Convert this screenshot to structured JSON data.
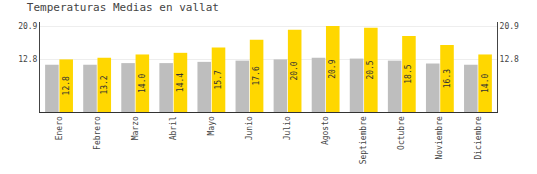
{
  "chart_data": {
    "type": "bar",
    "title": "Temperaturas Medias en vallat",
    "categories": [
      "Enero",
      "Febrero",
      "Marzo",
      "Abril",
      "Mayo",
      "Junio",
      "Julio",
      "Agosto",
      "Septiembre",
      "Octubre",
      "Noviembre",
      "Diciembre"
    ],
    "series": [
      {
        "color": "#BEBEBE",
        "values": [
          11.5,
          11.5,
          11.9,
          11.9,
          12.2,
          12.5,
          12.8,
          13.2,
          13.0,
          12.5,
          11.8,
          11.5
        ]
      },
      {
        "color": "#FFD700",
        "values": [
          12.8,
          13.2,
          14.0,
          14.4,
          15.7,
          17.6,
          20.0,
          20.9,
          20.5,
          18.5,
          16.3,
          14.0
        ],
        "data_labels": true,
        "value_labels": [
          "12.8",
          "13.2",
          "14.0",
          "14.4",
          "15.7",
          "17.6",
          "20.0",
          "20.9",
          "20.5",
          "18.5",
          "16.3",
          "14.0"
        ]
      }
    ],
    "ylim": [
      0,
      21.9
    ],
    "yticks": [
      12.8,
      20.9
    ],
    "y2lim": [
      0,
      21.9
    ],
    "y2ticks": [
      12.8,
      20.9
    ],
    "grid": true
  }
}
